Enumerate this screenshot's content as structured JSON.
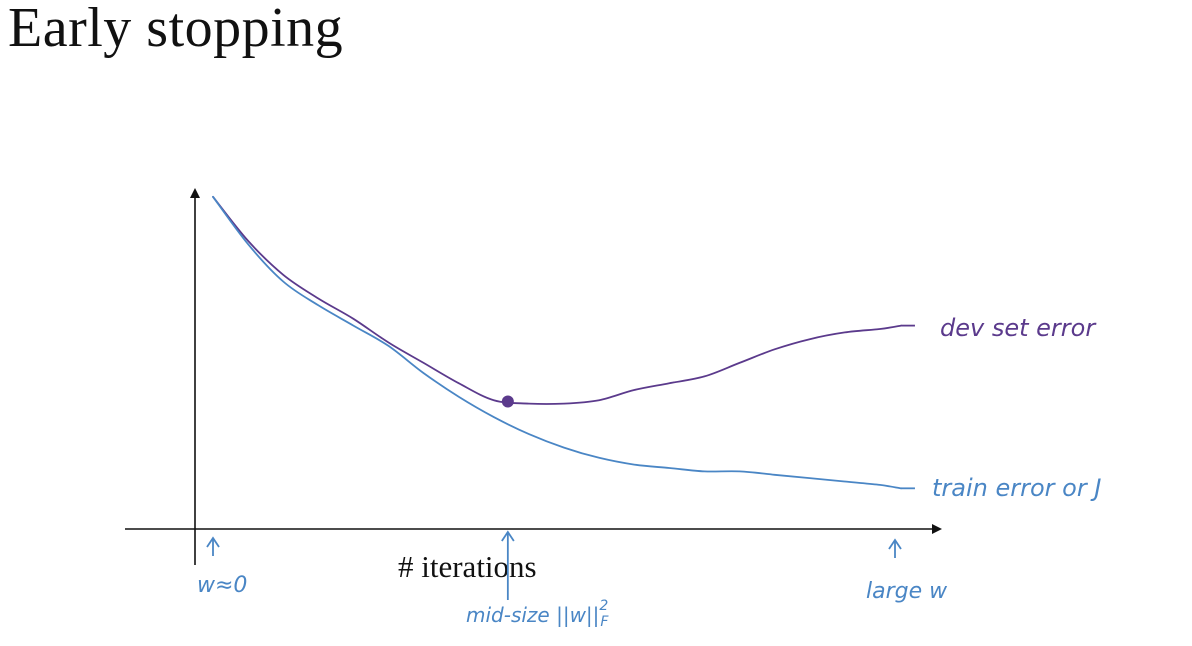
{
  "title": "Early stopping",
  "chart_data": {
    "type": "line",
    "title": "Early stopping",
    "xlabel": "# iterations",
    "ylabel": "",
    "xlim": [
      0,
      100
    ],
    "ylim": [
      0,
      100
    ],
    "grid": false,
    "legend": "none",
    "series": [
      {
        "name": "dev set error",
        "color": "#5b3a8c",
        "x": [
          0,
          5,
          10,
          15,
          20,
          25,
          30,
          35,
          40,
          45,
          50,
          55,
          60,
          65,
          70,
          75,
          80,
          85,
          90,
          95,
          98
        ],
        "y": [
          98,
          85,
          75,
          68,
          62,
          55,
          49,
          43,
          38,
          37,
          37,
          38,
          41,
          43,
          45,
          49,
          53,
          56,
          58,
          59,
          60
        ]
      },
      {
        "name": "train error or J",
        "color": "#4a86c5",
        "x": [
          0,
          5,
          10,
          15,
          20,
          25,
          30,
          35,
          40,
          45,
          50,
          55,
          60,
          65,
          70,
          75,
          80,
          85,
          90,
          95,
          98
        ],
        "y": [
          98,
          84,
          73,
          66,
          60,
          54,
          46,
          39,
          33,
          28,
          24,
          21,
          19,
          18,
          17,
          17,
          16,
          15,
          14,
          13,
          12
        ]
      }
    ],
    "annotations": [
      {
        "id": "origin",
        "text": "w≈0",
        "x": 2
      },
      {
        "id": "mid",
        "text": "mid-size ||w||",
        "sup": "2",
        "sub": "F",
        "x": 42
      },
      {
        "id": "large",
        "text": "large w",
        "x": 92
      }
    ],
    "marker": {
      "x": 42,
      "series": "dev set error"
    }
  }
}
